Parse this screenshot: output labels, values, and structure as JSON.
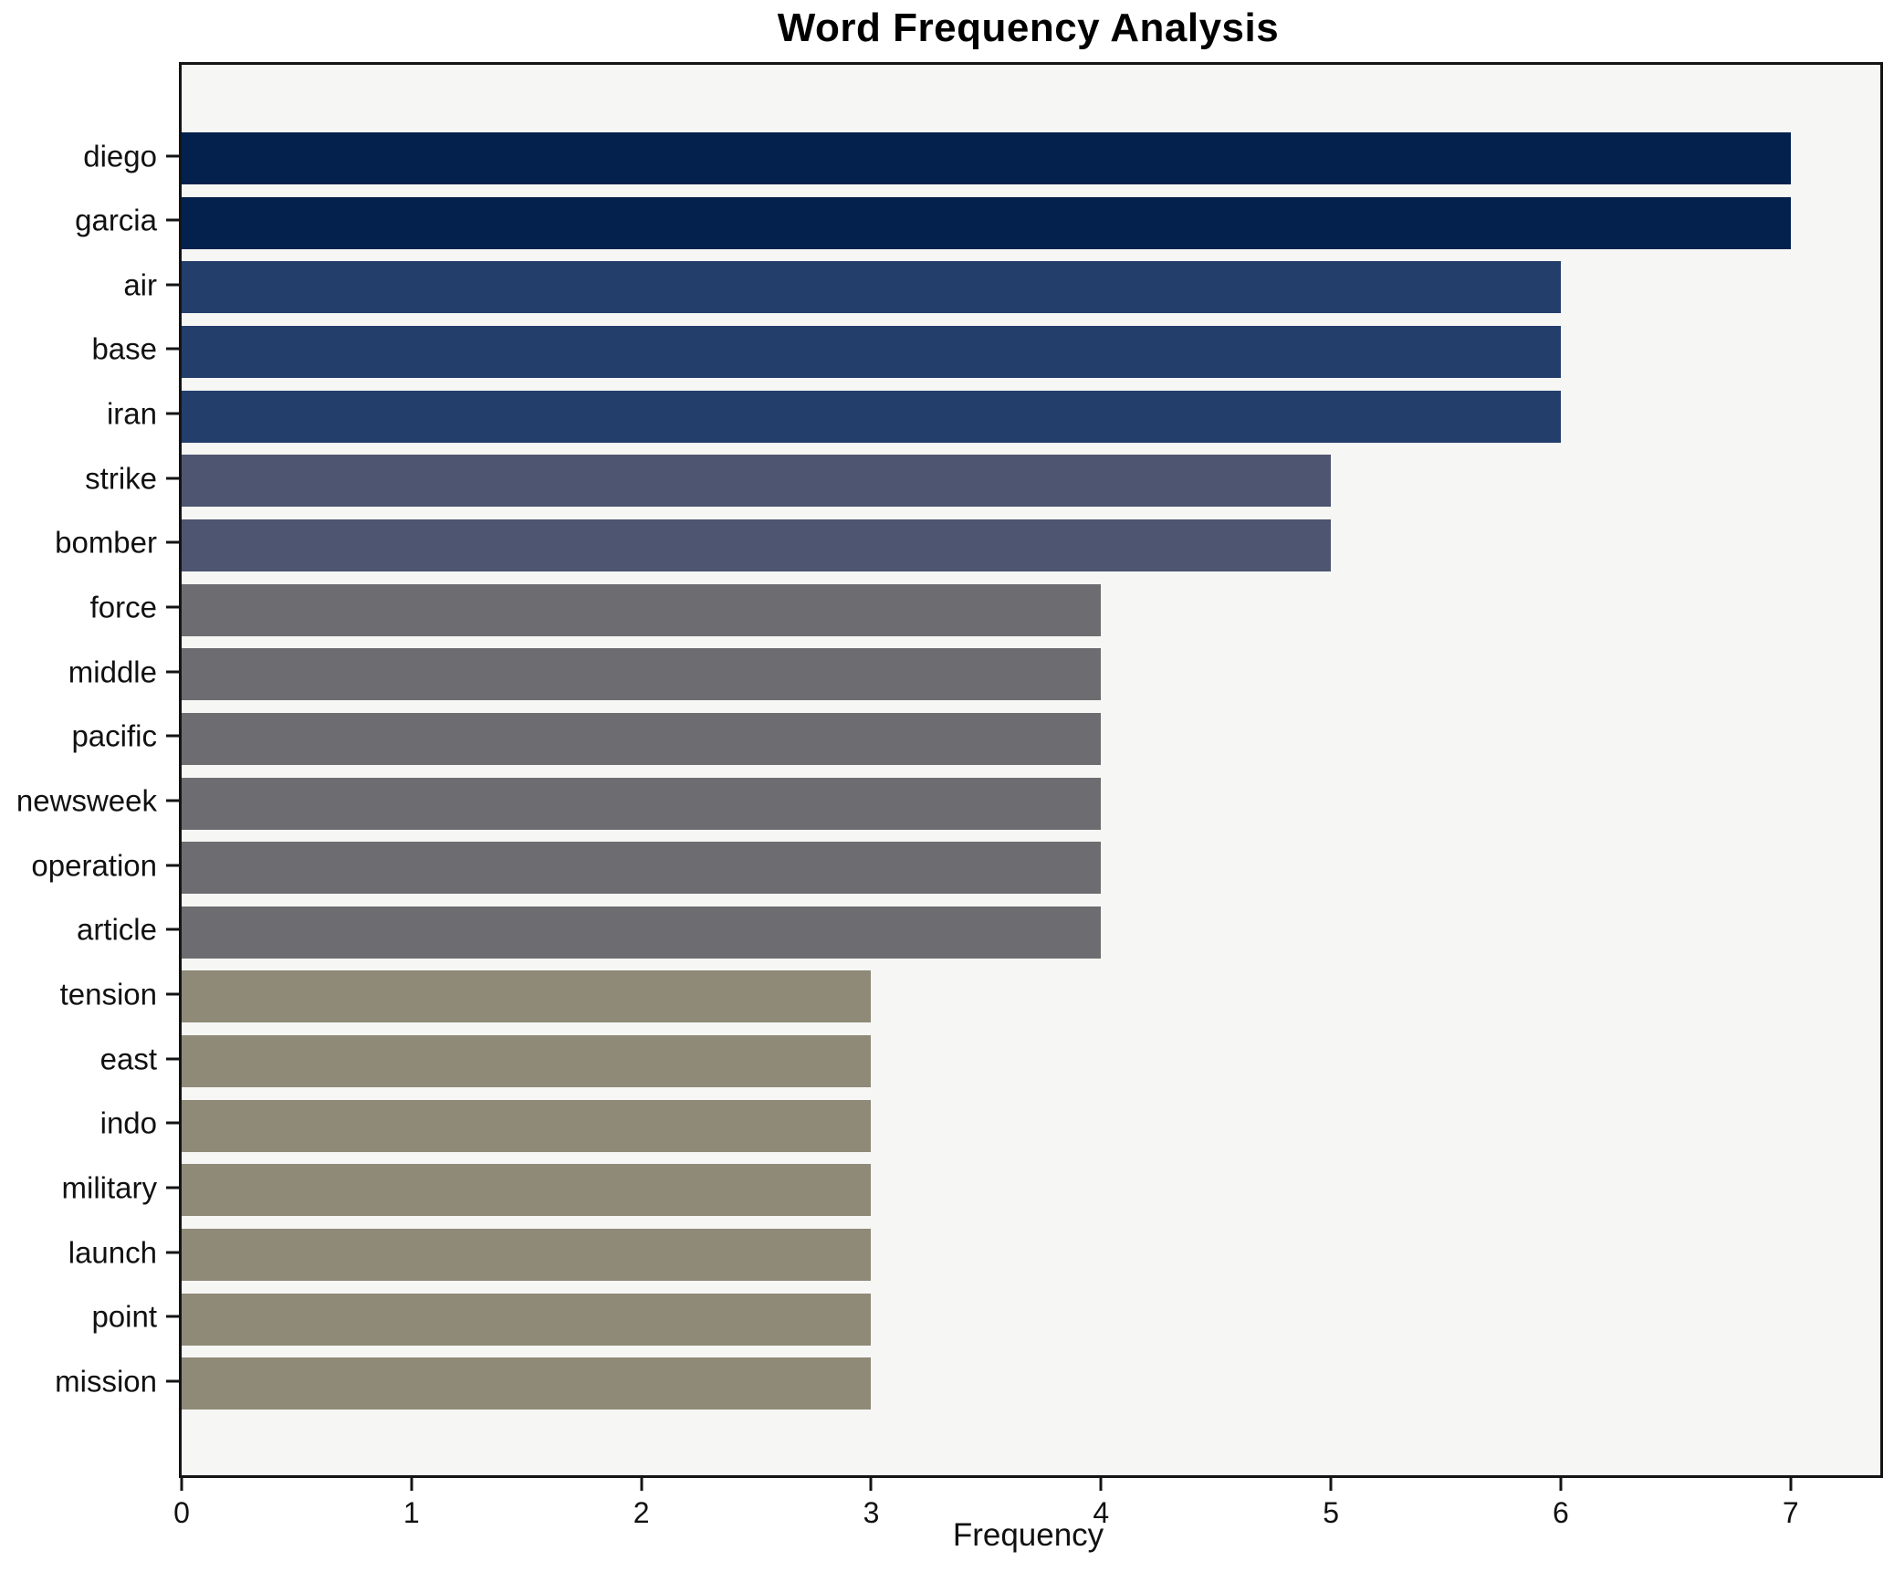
{
  "chart_data": {
    "type": "bar",
    "orientation": "horizontal",
    "title": "Word Frequency Analysis",
    "xlabel": "Frequency",
    "ylabel": "",
    "categories": [
      "diego",
      "garcia",
      "air",
      "base",
      "iran",
      "strike",
      "bomber",
      "force",
      "middle",
      "pacific",
      "newsweek",
      "operation",
      "article",
      "tension",
      "east",
      "indo",
      "military",
      "launch",
      "point",
      "mission"
    ],
    "values": [
      7,
      7,
      6,
      6,
      6,
      5,
      5,
      4,
      4,
      4,
      4,
      4,
      4,
      3,
      3,
      3,
      3,
      3,
      3,
      3
    ],
    "xlim": [
      0,
      7.39
    ],
    "xticks": [
      0,
      1,
      2,
      3,
      4,
      5,
      6,
      7
    ],
    "grid": false,
    "legend": null,
    "colors": {
      "bar_by_value": {
        "7": "#03214c",
        "6": "#243e6c",
        "5": "#4d5570",
        "4": "#6d6c70",
        "3": "#8f8978"
      },
      "plot_background": "#f6f6f4",
      "figure_background": "#ffffff",
      "spine": "#141414"
    }
  }
}
